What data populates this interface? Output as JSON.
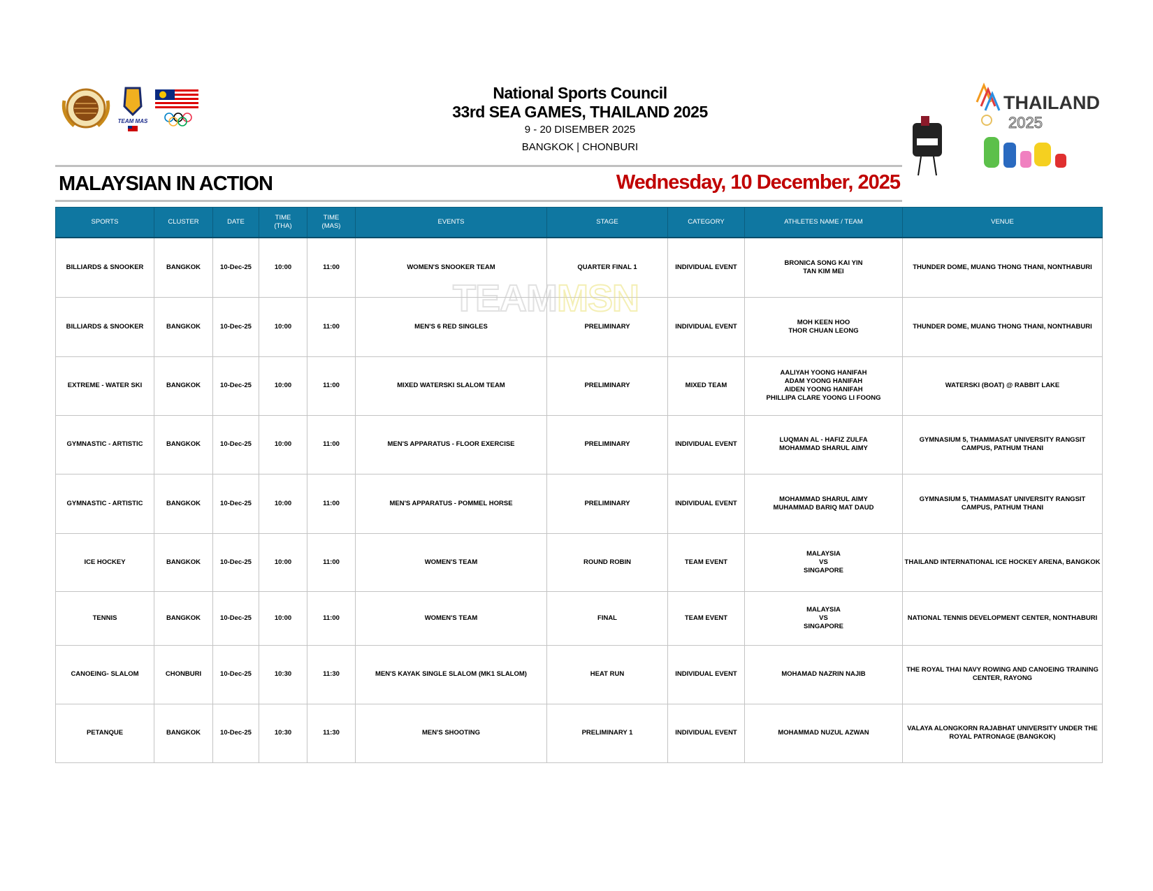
{
  "header": {
    "org": "National Sports Council",
    "event": "33rd SEA GAMES, THAILAND 2025",
    "dates": "9 - 20 DISEMBER 2025",
    "clusters": "BANGKOK | CHONBURI"
  },
  "logos": {
    "left": [
      "Majlis Sukan Negara Malaysia seal",
      "TEAM MAS",
      "Malaysia flag with Olympic rings"
    ],
    "right": "THAILAND 2025",
    "watermark": "TEAMMSN"
  },
  "banner": {
    "title": "MALAYSIAN IN ACTION",
    "date": "Wednesday, 10 December, 2025"
  },
  "colors": {
    "header_bg": "#0f77a1",
    "date_red": "#c00000"
  },
  "table": {
    "columns": [
      "SPORTS",
      "CLUSTER",
      "DATE",
      "TIME\n(THA)",
      "TIME\n(MAS)",
      "EVENTS",
      "STAGE",
      "CATEGORY",
      "ATHLETES NAME / TEAM",
      "VENUE"
    ],
    "rows": [
      [
        "BILLIARDS & SNOOKER",
        "BANGKOK",
        "10-Dec-25",
        "10:00",
        "11:00",
        "WOMEN'S SNOOKER TEAM",
        "QUARTER FINAL 1",
        "INDIVIDUAL EVENT",
        "BRONICA SONG KAI YIN\nTAN KIM MEI",
        "THUNDER DOME, MUANG THONG THANI, NONTHABURI"
      ],
      [
        "BILLIARDS & SNOOKER",
        "BANGKOK",
        "10-Dec-25",
        "10:00",
        "11:00",
        "MEN'S 6 RED SINGLES",
        "PRELIMINARY",
        "INDIVIDUAL EVENT",
        "MOH KEEN HOO\nTHOR CHUAN LEONG",
        "THUNDER DOME, MUANG THONG THANI, NONTHABURI"
      ],
      [
        "EXTREME - WATER SKI",
        "BANGKOK",
        "10-Dec-25",
        "10:00",
        "11:00",
        "MIXED WATERSKI SLALOM TEAM",
        "PRELIMINARY",
        "MIXED TEAM",
        "AALIYAH YOONG HANIFAH\nADAM YOONG HANIFAH\nAIDEN YOONG HANIFAH\nPHILLIPA CLARE YOONG LI FOONG",
        "WATERSKI (BOAT) @ RABBIT LAKE"
      ],
      [
        "GYMNASTIC - ARTISTIC",
        "BANGKOK",
        "10-Dec-25",
        "10:00",
        "11:00",
        "MEN'S APPARATUS -  FLOOR EXERCISE",
        "PRELIMINARY",
        "INDIVIDUAL EVENT",
        "LUQMAN AL - HAFIZ ZULFA\nMOHAMMAD SHARUL AIMY",
        "GYMNASIUM 5, THAMMASAT UNIVERSITY RANGSIT CAMPUS, PATHUM THANI"
      ],
      [
        "GYMNASTIC - ARTISTIC",
        "BANGKOK",
        "10-Dec-25",
        "10:00",
        "11:00",
        "MEN'S APPARATUS -  POMMEL HORSE",
        "PRELIMINARY",
        "INDIVIDUAL EVENT",
        "MOHAMMAD SHARUL AIMY\nMUHAMMAD BARIQ MAT DAUD",
        "GYMNASIUM 5, THAMMASAT UNIVERSITY RANGSIT CAMPUS, PATHUM THANI"
      ],
      [
        "ICE HOCKEY",
        "BANGKOK",
        "10-Dec-25",
        "10:00",
        "11:00",
        "WOMEN'S TEAM",
        "ROUND ROBIN",
        "TEAM EVENT",
        "MALAYSIA\nVS\nSINGAPORE",
        "THAILAND INTERNATIONAL ICE HOCKEY ARENA, BANGKOK"
      ],
      [
        "TENNIS",
        "BANGKOK",
        "10-Dec-25",
        "10:00",
        "11:00",
        "WOMEN'S TEAM",
        "FINAL",
        "TEAM EVENT",
        "MALAYSIA\nVS\nSINGAPORE",
        "NATIONAL TENNIS DEVELOPMENT CENTER, NONTHABURI"
      ],
      [
        "CANOEING- SLALOM",
        "CHONBURI",
        "10-Dec-25",
        "10:30",
        "11:30",
        "MEN'S KAYAK SINGLE SLALOM (MK1 SLALOM)",
        "HEAT RUN",
        "INDIVIDUAL EVENT",
        "MOHAMAD NAZRIN NAJIB",
        "THE ROYAL THAI NAVY ROWING AND CANOEING TRAINING CENTER, RAYONG"
      ],
      [
        "PETANQUE",
        "BANGKOK",
        "10-Dec-25",
        "10:30",
        "11:30",
        "MEN'S SHOOTING",
        "PRELIMINARY 1",
        "INDIVIDUAL EVENT",
        "MOHAMMAD NUZUL AZWAN",
        "VALAYA ALONGKORN RAJABHAT UNIVERSITY UNDER THE ROYAL PATRONAGE (BANGKOK)"
      ]
    ]
  }
}
